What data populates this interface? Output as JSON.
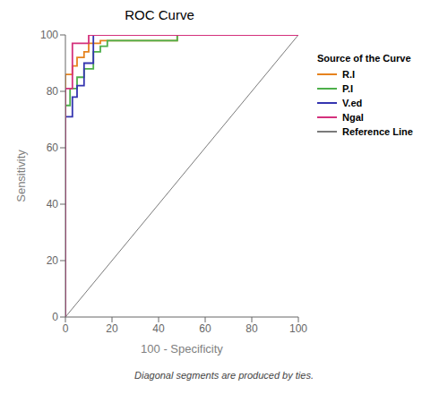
{
  "chart_data": {
    "type": "line",
    "title": "ROC Curve",
    "xlabel": "100 - Specificity",
    "ylabel": "Sensitivity",
    "footnote": "Diagonal segments are produced by ties.",
    "legend_title": "Source of the Curve",
    "legend": "right",
    "grid": false,
    "xlim": [
      0,
      100
    ],
    "ylim": [
      0,
      100
    ],
    "xticks": [
      0,
      20,
      40,
      60,
      80,
      100
    ],
    "yticks": [
      0,
      20,
      40,
      60,
      80,
      100
    ],
    "series": [
      {
        "name": "R.I",
        "color": "#e6821e",
        "x": [
          0,
          0,
          3,
          3,
          5,
          5,
          8,
          8,
          10,
          10,
          15,
          15,
          48,
          48,
          100
        ],
        "values": [
          0,
          86,
          86,
          89,
          89,
          92,
          92,
          94,
          94,
          97,
          97,
          98,
          98,
          100,
          100
        ]
      },
      {
        "name": "P.I",
        "color": "#4daf4a",
        "x": [
          0,
          0,
          2,
          2,
          5,
          5,
          8,
          8,
          12,
          12,
          15,
          15,
          18,
          18,
          48,
          48,
          100
        ],
        "values": [
          0,
          75,
          75,
          81,
          81,
          85,
          85,
          88,
          88,
          94,
          94,
          96,
          96,
          98,
          98,
          100,
          100
        ]
      },
      {
        "name": "V.ed",
        "color": "#3535b0",
        "x": [
          0,
          0,
          3,
          3,
          5,
          5,
          8,
          8,
          12,
          12,
          100
        ],
        "values": [
          0,
          71,
          71,
          78,
          78,
          82,
          82,
          90,
          90,
          100,
          100
        ]
      },
      {
        "name": "Ngal",
        "color": "#d4317c",
        "x": [
          0,
          0,
          3,
          3,
          10,
          10,
          100
        ],
        "values": [
          0,
          81,
          81,
          97,
          97,
          100,
          100
        ]
      },
      {
        "name": "Reference Line",
        "color": "#7a7a7a",
        "x": [
          0,
          100
        ],
        "values": [
          0,
          100
        ]
      }
    ]
  }
}
